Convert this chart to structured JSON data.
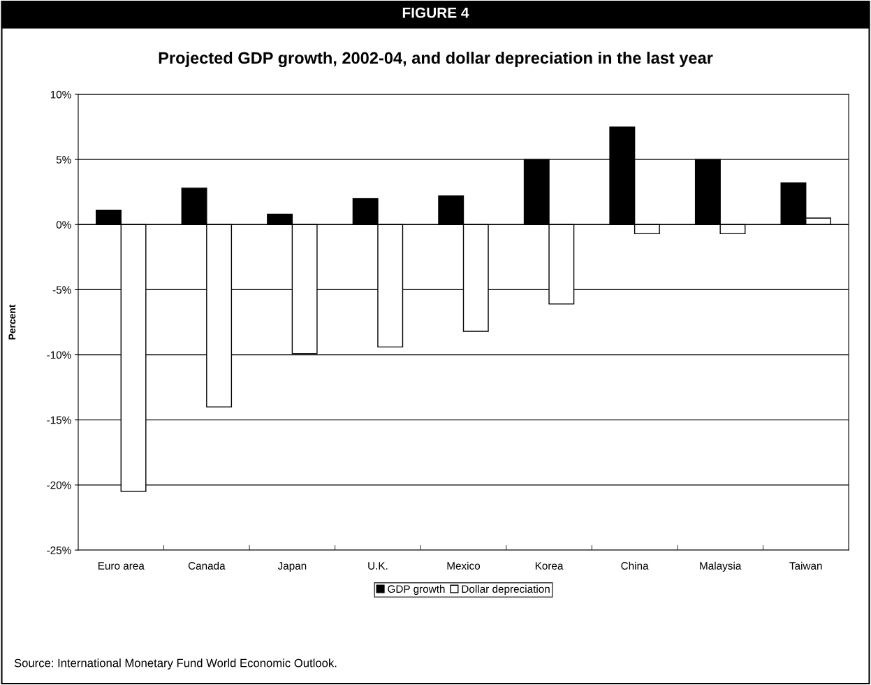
{
  "chart_data": {
    "type": "bar",
    "title": "FIGURE 4",
    "subtitle": "Projected GDP growth, 2002-04, and dollar depreciation in the last year",
    "ylabel": "Percent",
    "categories": [
      "Euro area",
      "Canada",
      "Japan",
      "U.K.",
      "Mexico",
      "Korea",
      "China",
      "Malaysia",
      "Taiwan"
    ],
    "series": [
      {
        "name": "GDP growth",
        "color": "#000000",
        "values": [
          1.1,
          2.8,
          0.8,
          2.0,
          2.2,
          5.0,
          7.5,
          5.0,
          3.2
        ]
      },
      {
        "name": "Dollar depreciation",
        "color": "#ffffff",
        "values": [
          -20.5,
          -14.0,
          -9.9,
          -9.4,
          -8.2,
          -6.1,
          -0.7,
          -0.7,
          0.5
        ]
      }
    ],
    "ylim": [
      -25,
      10
    ],
    "yticks": [
      {
        "value": -25,
        "label": "-25%"
      },
      {
        "value": -20,
        "label": "-20%"
      },
      {
        "value": -15,
        "label": "-15%"
      },
      {
        "value": -10,
        "label": "-10%"
      },
      {
        "value": -5,
        "label": "-5%"
      },
      {
        "value": 0,
        "label": "0%"
      },
      {
        "value": 5,
        "label": "5%"
      },
      {
        "value": 10,
        "label": "10%"
      }
    ],
    "grid": "y",
    "legend": "bottom",
    "annotations": [
      "Source: International Monetary Fund World Economic Outlook."
    ]
  }
}
